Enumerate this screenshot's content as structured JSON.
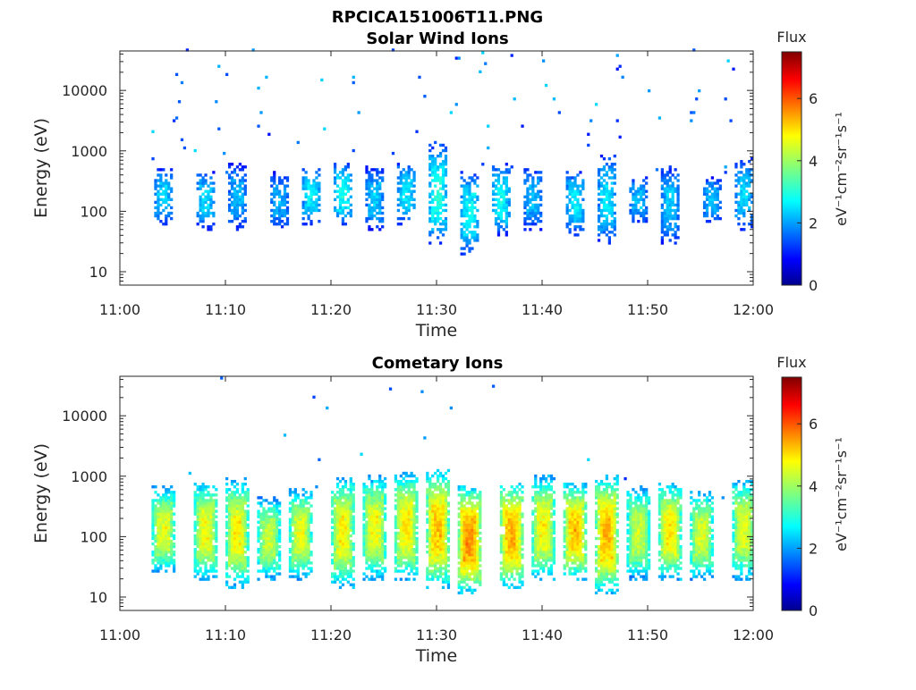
{
  "figure": {
    "title": "RPCICA151006T11.PNG"
  },
  "chart_data": [
    {
      "type": "heatmap",
      "title": "Solar Wind Ions",
      "xlabel": "Time",
      "ylabel": "Energy (eV)",
      "x_range": [
        "11:00",
        "12:00"
      ],
      "y_range": [
        6,
        45000
      ],
      "y_scale": "log",
      "x_ticks": [
        "11:00",
        "11:10",
        "11:20",
        "11:30",
        "11:40",
        "11:50",
        "12:00"
      ],
      "y_ticks": [
        {
          "value": 10,
          "label": "10"
        },
        {
          "value": 100,
          "label": "100"
        },
        {
          "value": 1000,
          "label": "1000"
        },
        {
          "value": 10000,
          "label": "10000"
        }
      ],
      "colorbar": {
        "title": "Flux",
        "unit": "eV⁻¹cm⁻²sr⁻¹s⁻¹",
        "range": [
          0,
          7.5
        ],
        "ticks": [
          0,
          2,
          4,
          6
        ],
        "colormap": "jet"
      },
      "time_start_min": 3,
      "time_end_min": 60,
      "bursts": [
        {
          "time": "11:04",
          "energy_lo": 60,
          "energy_hi": 500,
          "flux": 2.6
        },
        {
          "time": "11:08",
          "energy_lo": 50,
          "energy_hi": 450,
          "flux": 2.6
        },
        {
          "time": "11:11",
          "energy_lo": 50,
          "energy_hi": 550,
          "flux": 2.4
        },
        {
          "time": "11:15",
          "energy_lo": 50,
          "energy_hi": 400,
          "flux": 2.3
        },
        {
          "time": "11:18",
          "energy_lo": 60,
          "energy_hi": 500,
          "flux": 2.8
        },
        {
          "time": "11:21",
          "energy_lo": 60,
          "energy_hi": 600,
          "flux": 2.9
        },
        {
          "time": "11:24",
          "energy_lo": 50,
          "energy_hi": 500,
          "flux": 2.5
        },
        {
          "time": "11:27",
          "energy_lo": 60,
          "energy_hi": 600,
          "flux": 2.7
        },
        {
          "time": "11:30",
          "energy_lo": 30,
          "energy_hi": 1200,
          "flux": 3.1
        },
        {
          "time": "11:33",
          "energy_lo": 20,
          "energy_hi": 400,
          "flux": 2.9
        },
        {
          "time": "11:36",
          "energy_lo": 40,
          "energy_hi": 550,
          "flux": 2.9
        },
        {
          "time": "11:39",
          "energy_lo": 50,
          "energy_hi": 500,
          "flux": 2.4
        },
        {
          "time": "11:43",
          "energy_lo": 40,
          "energy_hi": 450,
          "flux": 2.7
        },
        {
          "time": "11:46",
          "energy_lo": 30,
          "energy_hi": 800,
          "flux": 2.7
        },
        {
          "time": "11:49",
          "energy_lo": 60,
          "energy_hi": 350,
          "flux": 2.4
        },
        {
          "time": "11:52",
          "energy_lo": 30,
          "energy_hi": 500,
          "flux": 2.5
        },
        {
          "time": "11:56",
          "energy_lo": 60,
          "energy_hi": 350,
          "flux": 2.4
        },
        {
          "time": "11:59",
          "energy_lo": 50,
          "energy_hi": 700,
          "flux": 2.6
        }
      ]
    },
    {
      "type": "heatmap",
      "title": "Cometary Ions",
      "xlabel": "Time",
      "ylabel": "Energy (eV)",
      "x_range": [
        "11:00",
        "12:00"
      ],
      "y_range": [
        6,
        45000
      ],
      "y_scale": "log",
      "x_ticks": [
        "11:00",
        "11:10",
        "11:20",
        "11:30",
        "11:40",
        "11:50",
        "12:00"
      ],
      "y_ticks": [
        {
          "value": 10,
          "label": "10"
        },
        {
          "value": 100,
          "label": "100"
        },
        {
          "value": 1000,
          "label": "1000"
        },
        {
          "value": 10000,
          "label": "10000"
        }
      ],
      "colorbar": {
        "title": "Flux",
        "unit": "eV⁻¹cm⁻²sr⁻¹s⁻¹",
        "range": [
          0,
          7.5
        ],
        "ticks": [
          0,
          2,
          4,
          6
        ],
        "colormap": "jet"
      },
      "time_start_min": 3,
      "time_end_min": 60,
      "bursts": [
        {
          "time": "11:04",
          "energy_lo": 25,
          "energy_hi": 600,
          "flux": 4.6
        },
        {
          "time": "11:08",
          "energy_lo": 20,
          "energy_hi": 700,
          "flux": 4.7
        },
        {
          "time": "11:11",
          "energy_lo": 15,
          "energy_hi": 800,
          "flux": 4.8
        },
        {
          "time": "11:14",
          "energy_lo": 20,
          "energy_hi": 400,
          "flux": 4.4
        },
        {
          "time": "11:17",
          "energy_lo": 20,
          "energy_hi": 550,
          "flux": 4.6
        },
        {
          "time": "11:21",
          "energy_lo": 15,
          "energy_hi": 850,
          "flux": 4.8
        },
        {
          "time": "11:24",
          "energy_lo": 20,
          "energy_hi": 900,
          "flux": 4.7
        },
        {
          "time": "11:27",
          "energy_lo": 20,
          "energy_hi": 1000,
          "flux": 4.9
        },
        {
          "time": "11:30",
          "energy_lo": 15,
          "energy_hi": 1100,
          "flux": 5.2
        },
        {
          "time": "11:33",
          "energy_lo": 12,
          "energy_hi": 600,
          "flux": 5.6
        },
        {
          "time": "11:37",
          "energy_lo": 15,
          "energy_hi": 700,
          "flux": 5.4
        },
        {
          "time": "11:40",
          "energy_lo": 20,
          "energy_hi": 900,
          "flux": 4.8
        },
        {
          "time": "11:43",
          "energy_lo": 20,
          "energy_hi": 700,
          "flux": 5.2
        },
        {
          "time": "11:46",
          "energy_lo": 12,
          "energy_hi": 900,
          "flux": 5.3
        },
        {
          "time": "11:49",
          "energy_lo": 20,
          "energy_hi": 600,
          "flux": 4.4
        },
        {
          "time": "11:52",
          "energy_lo": 20,
          "energy_hi": 700,
          "flux": 4.9
        },
        {
          "time": "11:55",
          "energy_lo": 20,
          "energy_hi": 500,
          "flux": 4.5
        },
        {
          "time": "11:59",
          "energy_lo": 20,
          "energy_hi": 800,
          "flux": 4.6
        }
      ]
    }
  ]
}
